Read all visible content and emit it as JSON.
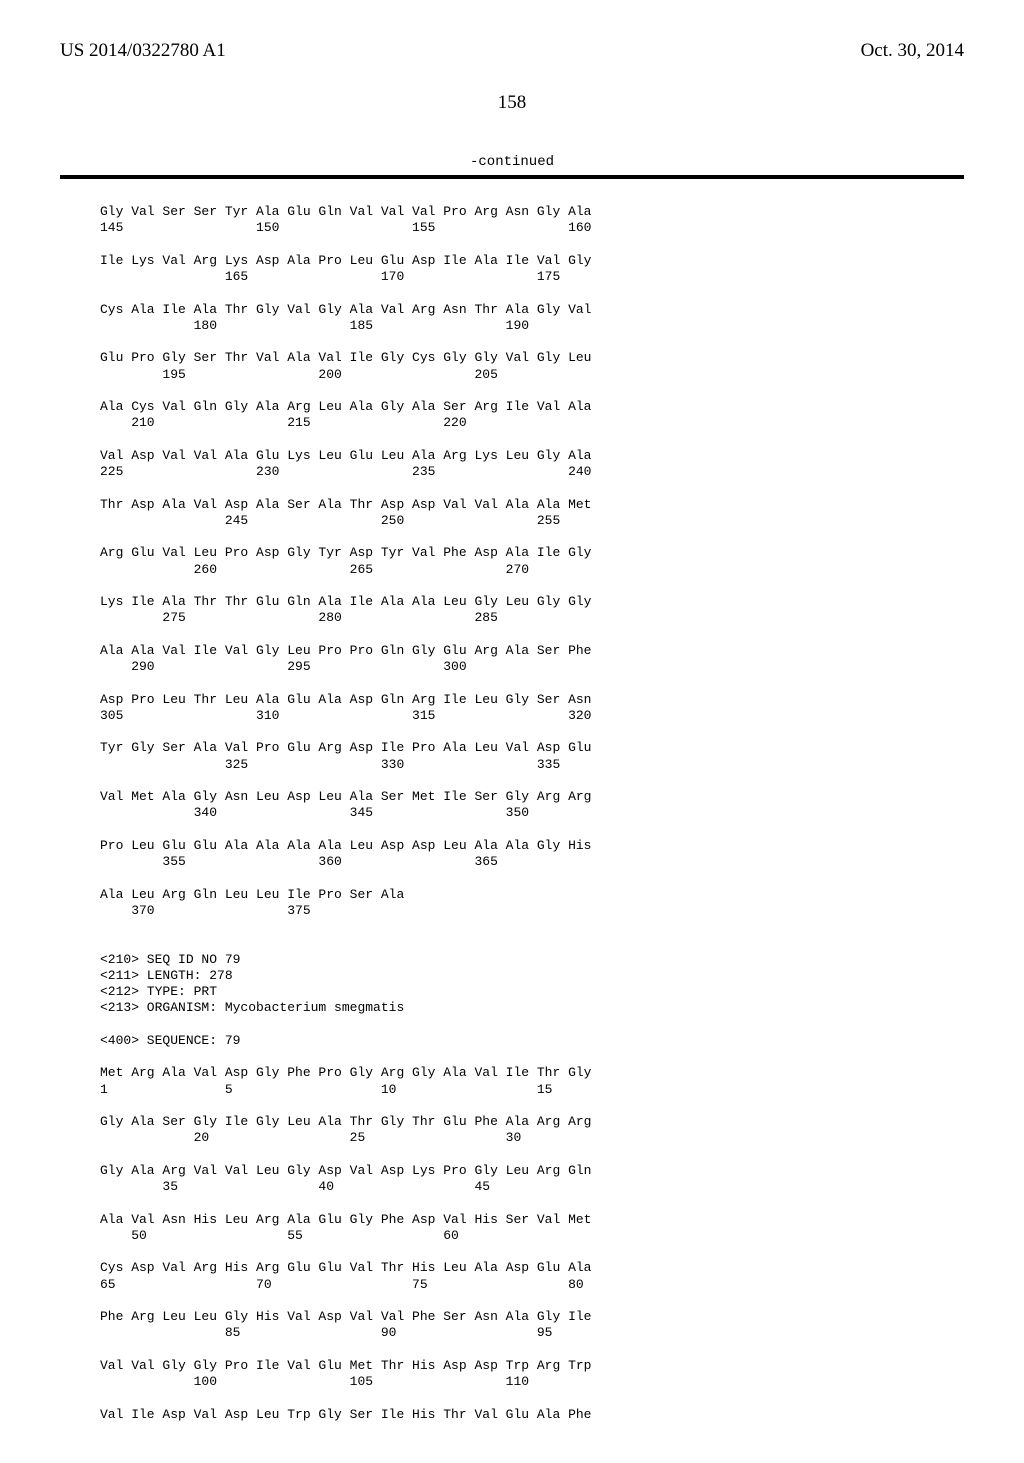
{
  "header": {
    "left": "US 2014/0322780 A1",
    "right": "Oct. 30, 2014"
  },
  "page_number": "158",
  "continued_label": "-continued",
  "sequence_lines": [
    "Gly Val Ser Ser Tyr Ala Glu Gln Val Val Val Pro Arg Asn Gly Ala",
    "145                 150                 155                 160",
    "",
    "Ile Lys Val Arg Lys Asp Ala Pro Leu Glu Asp Ile Ala Ile Val Gly",
    "                165                 170                 175",
    "",
    "Cys Ala Ile Ala Thr Gly Val Gly Ala Val Arg Asn Thr Ala Gly Val",
    "            180                 185                 190",
    "",
    "Glu Pro Gly Ser Thr Val Ala Val Ile Gly Cys Gly Gly Val Gly Leu",
    "        195                 200                 205",
    "",
    "Ala Cys Val Gln Gly Ala Arg Leu Ala Gly Ala Ser Arg Ile Val Ala",
    "    210                 215                 220",
    "",
    "Val Asp Val Val Ala Glu Lys Leu Glu Leu Ala Arg Lys Leu Gly Ala",
    "225                 230                 235                 240",
    "",
    "Thr Asp Ala Val Asp Ala Ser Ala Thr Asp Asp Val Val Ala Ala Met",
    "                245                 250                 255",
    "",
    "Arg Glu Val Leu Pro Asp Gly Tyr Asp Tyr Val Phe Asp Ala Ile Gly",
    "            260                 265                 270",
    "",
    "Lys Ile Ala Thr Thr Glu Gln Ala Ile Ala Ala Leu Gly Leu Gly Gly",
    "        275                 280                 285",
    "",
    "Ala Ala Val Ile Val Gly Leu Pro Pro Gln Gly Glu Arg Ala Ser Phe",
    "    290                 295                 300",
    "",
    "Asp Pro Leu Thr Leu Ala Glu Ala Asp Gln Arg Ile Leu Gly Ser Asn",
    "305                 310                 315                 320",
    "",
    "Tyr Gly Ser Ala Val Pro Glu Arg Asp Ile Pro Ala Leu Val Asp Glu",
    "                325                 330                 335",
    "",
    "Val Met Ala Gly Asn Leu Asp Leu Ala Ser Met Ile Ser Gly Arg Arg",
    "            340                 345                 350",
    "",
    "Pro Leu Glu Glu Ala Ala Ala Ala Leu Asp Asp Leu Ala Ala Gly His",
    "        355                 360                 365",
    "",
    "Ala Leu Arg Gln Leu Leu Ile Pro Ser Ala",
    "    370                 375",
    "",
    "",
    "<210> SEQ ID NO 79",
    "<211> LENGTH: 278",
    "<212> TYPE: PRT",
    "<213> ORGANISM: Mycobacterium smegmatis",
    "",
    "<400> SEQUENCE: 79",
    "",
    "Met Arg Ala Val Asp Gly Phe Pro Gly Arg Gly Ala Val Ile Thr Gly",
    "1               5                   10                  15",
    "",
    "Gly Ala Ser Gly Ile Gly Leu Ala Thr Gly Thr Glu Phe Ala Arg Arg",
    "            20                  25                  30",
    "",
    "Gly Ala Arg Val Val Leu Gly Asp Val Asp Lys Pro Gly Leu Arg Gln",
    "        35                  40                  45",
    "",
    "Ala Val Asn His Leu Arg Ala Glu Gly Phe Asp Val His Ser Val Met",
    "    50                  55                  60",
    "",
    "Cys Asp Val Arg His Arg Glu Glu Val Thr His Leu Ala Asp Glu Ala",
    "65                  70                  75                  80",
    "",
    "Phe Arg Leu Leu Gly His Val Asp Val Val Phe Ser Asn Ala Gly Ile",
    "                85                  90                  95",
    "",
    "Val Val Gly Gly Pro Ile Val Glu Met Thr His Asp Asp Trp Arg Trp",
    "            100                 105                 110",
    "",
    "Val Ile Asp Val Asp Leu Trp Gly Ser Ile His Thr Val Glu Ala Phe"
  ]
}
